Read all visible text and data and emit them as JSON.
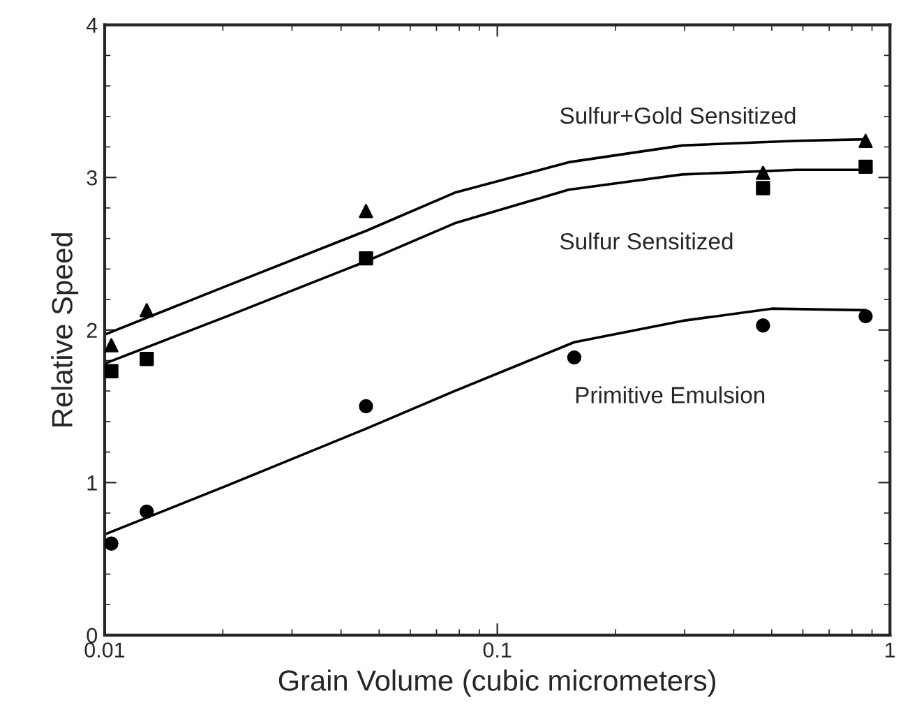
{
  "chart_data": {
    "type": "scatter",
    "xlabel": "Grain Volume (cubic micrometers)",
    "ylabel": "Relative Speed",
    "log": "x",
    "xlim": [
      0.01,
      1
    ],
    "xticks": [
      0.01,
      0.1,
      1
    ],
    "ylim": [
      0,
      4
    ],
    "yticks": [
      0,
      1,
      2,
      3,
      4
    ],
    "grid": false,
    "legend": false,
    "series": [
      {
        "marker": "triangle",
        "color": "#000000",
        "x": [
          0.0104,
          0.0128,
          0.0463,
          0.475,
          0.867
        ],
        "values": [
          1.9,
          2.13,
          2.78,
          3.03,
          3.24
        ]
      },
      {
        "marker": "square",
        "color": "#000000",
        "x": [
          0.0104,
          0.0128,
          0.0463,
          0.475,
          0.867
        ],
        "values": [
          1.73,
          1.81,
          2.47,
          2.93,
          3.07
        ]
      },
      {
        "marker": "circle",
        "color": "#000000",
        "x": [
          0.0104,
          0.0128,
          0.0463,
          0.157,
          0.475,
          0.867
        ],
        "values": [
          0.6,
          0.81,
          1.5,
          1.82,
          2.03,
          2.09
        ]
      },
      {
        "type": "line",
        "marker": "none",
        "line_style": "solid",
        "color": "#000000",
        "x": [
          0.01,
          0.0205,
          0.0463,
          0.0779,
          0.152,
          0.296,
          0.577,
          0.867
        ],
        "values": [
          1.97,
          2.29,
          2.65,
          2.9,
          3.1,
          3.21,
          3.24,
          3.25
        ]
      },
      {
        "type": "line",
        "marker": "none",
        "line_style": "solid",
        "color": "#000000",
        "x": [
          0.01,
          0.0205,
          0.0463,
          0.0779,
          0.152,
          0.296,
          0.577,
          0.867
        ],
        "values": [
          1.78,
          2.09,
          2.45,
          2.7,
          2.92,
          3.02,
          3.05,
          3.05
        ]
      },
      {
        "type": "line",
        "marker": "none",
        "line_style": "solid",
        "color": "#000000",
        "x": [
          0.01,
          0.0205,
          0.046,
          0.0779,
          0.157,
          0.296,
          0.5,
          0.867
        ],
        "values": [
          0.66,
          0.98,
          1.35,
          1.6,
          1.92,
          2.06,
          2.14,
          2.13
        ]
      }
    ],
    "annotations": [
      "Sulfur+Gold Sensitized",
      "Sulfur Sensitized",
      "Primitive Emulsion"
    ]
  }
}
